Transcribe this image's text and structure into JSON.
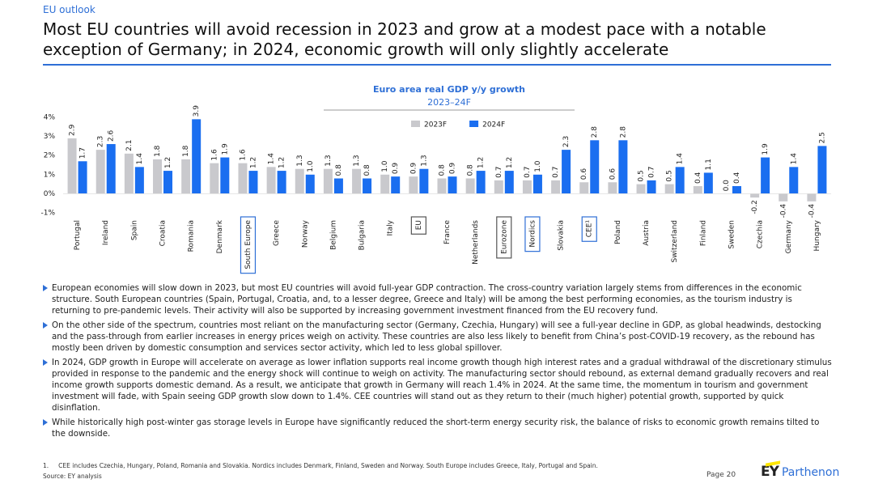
{
  "header": {
    "section": "EU outlook",
    "title": "Most EU countries will avoid recession in 2023 and grow at a modest pace with a notable exception of Germany; in 2024, economic growth will only slightly accelerate"
  },
  "chart_data": {
    "type": "bar",
    "title": "Euro area real GDP y/y growth",
    "subtitle": "2023–24F",
    "categories": [
      "Portugal",
      "Ireland",
      "Spain",
      "Croatia",
      "Romania",
      "Denmark",
      "South Europe",
      "Greece",
      "Norway",
      "Belgium",
      "Bulgaria",
      "Italy",
      "EU",
      "France",
      "Netherlands",
      "Eurozone",
      "Nordics",
      "Slovakia",
      "CEE¹",
      "Poland",
      "Austria",
      "Switzerland",
      "Finland",
      "Sweden",
      "Czechia",
      "Germany",
      "Hungary"
    ],
    "category_box_colors": [
      null,
      null,
      null,
      null,
      null,
      null,
      "#2e6fd6",
      null,
      null,
      null,
      null,
      null,
      "#555555",
      null,
      null,
      "#555555",
      "#2e6fd6",
      null,
      "#2e6fd6",
      null,
      null,
      null,
      null,
      null,
      null,
      null,
      null
    ],
    "series": [
      {
        "name": "2023F",
        "color": "#c9c9cd",
        "values": [
          2.9,
          2.3,
          2.1,
          1.8,
          1.8,
          1.6,
          1.6,
          1.4,
          1.3,
          1.3,
          1.3,
          1.0,
          0.9,
          0.8,
          0.8,
          0.7,
          0.7,
          0.7,
          0.6,
          0.6,
          0.5,
          0.5,
          0.4,
          0.0,
          -0.2,
          -0.4,
          -0.4
        ],
        "value_labels": [
          "2.9",
          "2.3",
          "2.1",
          "1.8",
          "1.8",
          "1.6",
          "1.6",
          "1.4",
          "1.3",
          "1.3",
          "1.3",
          "1.0",
          "0.9",
          "0.8",
          "0.8",
          "0.7",
          "0.7",
          "0.7",
          "0.6",
          "0.6",
          "0.5",
          "0.5",
          "0.4",
          "0.0",
          "-0.2",
          "-0.4",
          "-0.4"
        ]
      },
      {
        "name": "2024F",
        "color": "#1a6ef0",
        "values": [
          1.7,
          2.6,
          1.4,
          1.2,
          3.9,
          1.9,
          1.2,
          1.2,
          1.0,
          0.8,
          0.8,
          0.9,
          1.3,
          0.9,
          1.2,
          1.2,
          1.0,
          2.3,
          2.8,
          2.8,
          0.7,
          1.4,
          1.1,
          0.4,
          1.9,
          1.4,
          2.5
        ],
        "value_labels": [
          "1.7",
          "2.6",
          "1.4",
          "1.2",
          "3.9",
          "1.9",
          "1.2",
          "1.2",
          "1.0",
          "0.8",
          "0.8",
          "0.9",
          "1.3",
          "0.9",
          "1.2",
          "1.2",
          "1.0",
          "2.3",
          "2.8",
          "2.8",
          "0.7",
          "1.4",
          "1.1",
          "0.4",
          "1.9",
          "1.4",
          "2.5"
        ]
      }
    ],
    "ylim": [
      -1,
      4
    ],
    "yticks": [
      {
        "value": -1,
        "label": "-1%"
      },
      {
        "value": 0,
        "label": "0%"
      },
      {
        "value": 1,
        "label": "1%"
      },
      {
        "value": 2,
        "label": "2%"
      },
      {
        "value": 3,
        "label": "3%"
      },
      {
        "value": 4,
        "label": "4%"
      }
    ],
    "grid": false,
    "legend": "top"
  },
  "bullets": [
    "European economies will slow down in 2023, but most EU countries will avoid full-year GDP contraction. The cross-country variation largely stems from differences in the economic structure. South European countries (Spain, Portugal, Croatia, and, to a lesser degree, Greece and Italy) will be among the best performing economies, as the tourism industry is returning to pre-pandemic levels. Their activity will also be supported by increasing government investment financed from the EU recovery fund.",
    "On the other side of the spectrum, countries most reliant on the manufacturing sector (Germany, Czechia, Hungary) will see a full-year decline in GDP, as global headwinds, destocking and the pass-through from earlier increases in energy prices weigh on activity. These countries are also less likely to benefit from China’s post-COVID-19 recovery, as the rebound has mostly been driven by domestic consumption and services sector activity, which led to less global spillover.",
    "In 2024, GDP growth in Europe will accelerate on average as lower inflation supports real income growth though high interest rates and a gradual withdrawal of the discretionary stimulus provided in response to the pandemic and the energy shock will continue to weigh on activity. The manufacturing sector should rebound, as external demand gradually recovers and real income growth supports domestic demand. As a result, we anticipate that growth in Germany will reach 1.4% in 2024. At the same time, the momentum in tourism and government investment will fade, with Spain seeing GDP growth slow down to 1.4%. CEE countries will stand out as they return to their (much higher) potential growth, supported by quick disinflation.",
    "While historically high post-winter gas storage levels in Europe have significantly reduced the short-term energy security risk, the balance of risks to economic growth remains tilted to the downside."
  ],
  "footnote": {
    "number": "1.",
    "text": "CEE includes Czechia, Hungary, Poland, Romania and Slovakia. Nordics includes Denmark, Finland, Sweden and Norway. South Europe includes Greece, Italy, Portugal and Spain."
  },
  "source": "Source: EY analysis",
  "page": "Page 20",
  "logo": {
    "brand": "EY",
    "name": "Parthenon"
  }
}
